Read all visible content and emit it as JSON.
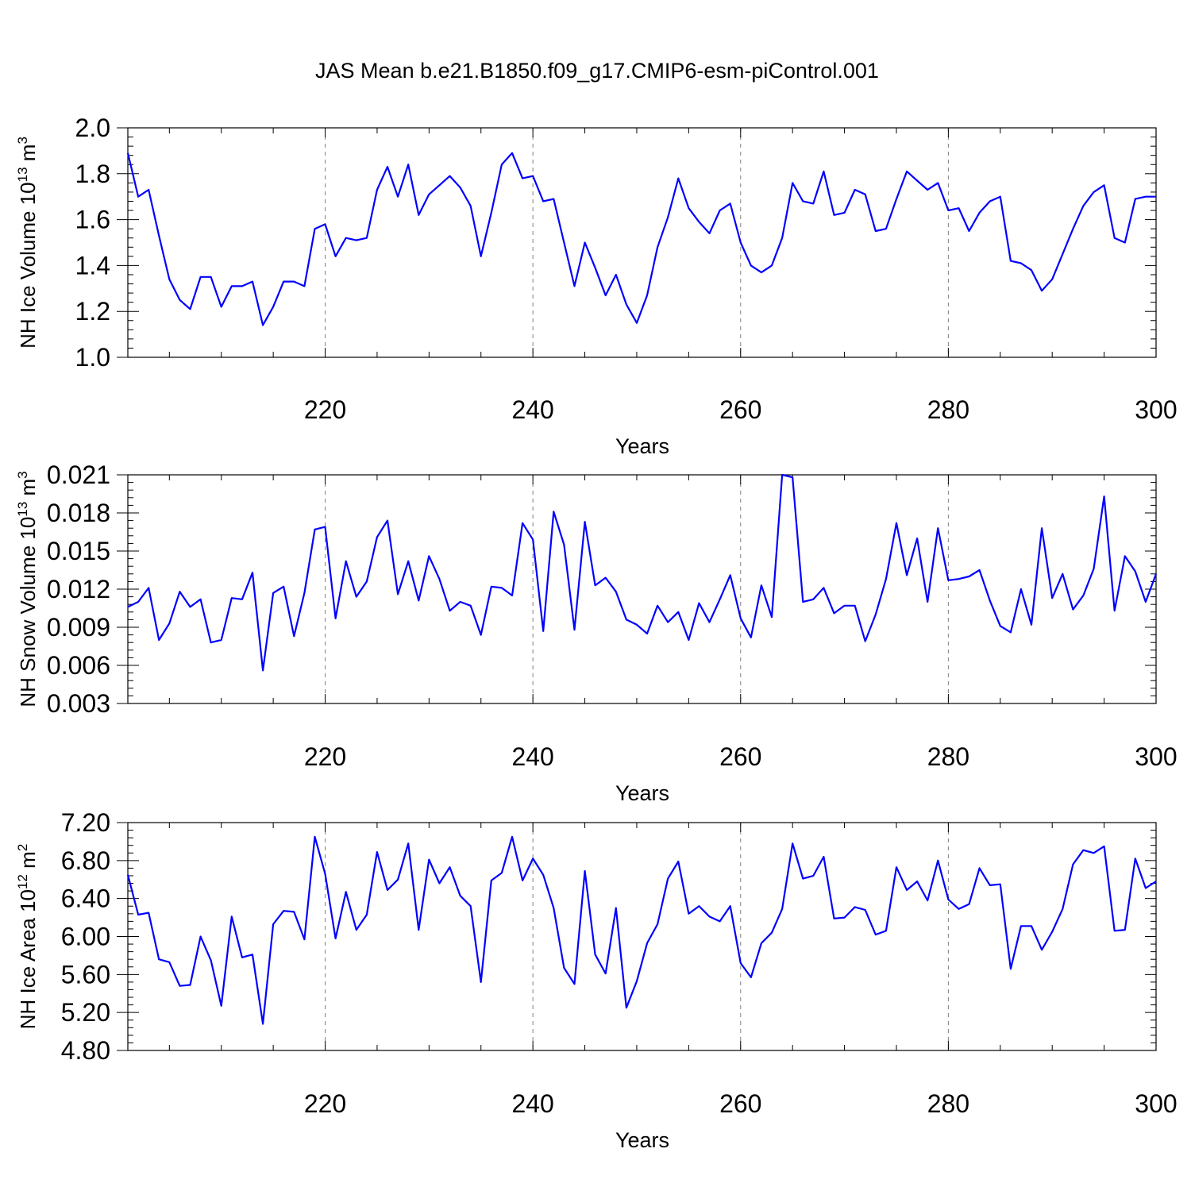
{
  "title": "JAS Mean b.e21.B1850.f09_g17.CMIP6-esm-piControl.001",
  "colors": {
    "series": "#0000ff",
    "axes": "#000000",
    "grid": "#808080"
  },
  "chart_data": [
    {
      "type": "line",
      "xlabel": "Years",
      "ylabel": {
        "main": "NH Ice Volume 10",
        "exp": "13",
        "unit": " m",
        "unit_exp": "3"
      },
      "xlim": [
        201,
        300
      ],
      "ylim": [
        1.0,
        2.0
      ],
      "xticks": [
        220,
        240,
        260,
        280,
        300
      ],
      "xtick_labels": [
        "220",
        "240",
        "260",
        "280",
        "300"
      ],
      "yticks": [
        1.0,
        1.2,
        1.4,
        1.6,
        1.8,
        2.0
      ],
      "ytick_labels": [
        "1.0",
        "1.2",
        "1.4",
        "1.6",
        "1.8",
        "2.0"
      ],
      "grid": "vertical dashed at major x ticks",
      "x_start": 201,
      "values": [
        1.89,
        1.7,
        1.73,
        1.53,
        1.34,
        1.25,
        1.21,
        1.35,
        1.35,
        1.22,
        1.31,
        1.31,
        1.33,
        1.14,
        1.22,
        1.33,
        1.33,
        1.31,
        1.56,
        1.58,
        1.44,
        1.52,
        1.51,
        1.52,
        1.73,
        1.83,
        1.7,
        1.84,
        1.62,
        1.71,
        1.75,
        1.79,
        1.74,
        1.66,
        1.44,
        1.63,
        1.84,
        1.89,
        1.78,
        1.79,
        1.68,
        1.69,
        1.5,
        1.31,
        1.5,
        1.39,
        1.27,
        1.36,
        1.23,
        1.15,
        1.27,
        1.48,
        1.61,
        1.78,
        1.65,
        1.59,
        1.54,
        1.64,
        1.67,
        1.5,
        1.4,
        1.37,
        1.4,
        1.52,
        1.76,
        1.68,
        1.67,
        1.81,
        1.62,
        1.63,
        1.73,
        1.71,
        1.55,
        1.56,
        1.69,
        1.81,
        1.77,
        1.73,
        1.76,
        1.64,
        1.65,
        1.55,
        1.63,
        1.68,
        1.7,
        1.42,
        1.41,
        1.38,
        1.29,
        1.34,
        1.45,
        1.56,
        1.66,
        1.72,
        1.75,
        1.52,
        1.5,
        1.69,
        1.7,
        1.7
      ]
    },
    {
      "type": "line",
      "xlabel": "Years",
      "ylabel": {
        "main": "NH Snow Volume 10",
        "exp": "13",
        "unit": " m",
        "unit_exp": "3"
      },
      "xlim": [
        201,
        300
      ],
      "ylim": [
        0.003,
        0.021
      ],
      "xticks": [
        220,
        240,
        260,
        280,
        300
      ],
      "xtick_labels": [
        "220",
        "240",
        "260",
        "280",
        "300"
      ],
      "yticks": [
        0.003,
        0.006,
        0.009,
        0.012,
        0.015,
        0.018,
        0.021
      ],
      "ytick_labels": [
        "0.003",
        "0.006",
        "0.009",
        "0.012",
        "0.015",
        "0.018",
        "0.021"
      ],
      "grid": "vertical dashed at major x ticks",
      "x_start": 201,
      "values": [
        0.0106,
        0.011,
        0.0121,
        0.008,
        0.0093,
        0.0118,
        0.0106,
        0.0112,
        0.0078,
        0.008,
        0.0113,
        0.0112,
        0.0133,
        0.0056,
        0.0117,
        0.0122,
        0.0083,
        0.0117,
        0.0167,
        0.0169,
        0.0097,
        0.0142,
        0.0114,
        0.0126,
        0.0161,
        0.0174,
        0.0116,
        0.0142,
        0.0111,
        0.0146,
        0.0128,
        0.0103,
        0.011,
        0.0107,
        0.0084,
        0.0122,
        0.0121,
        0.0115,
        0.0172,
        0.0159,
        0.0087,
        0.0181,
        0.0155,
        0.0088,
        0.0173,
        0.0123,
        0.0129,
        0.0118,
        0.0096,
        0.0092,
        0.0085,
        0.0107,
        0.0094,
        0.0102,
        0.008,
        0.0109,
        0.0094,
        0.0112,
        0.0131,
        0.0097,
        0.0082,
        0.0123,
        0.0098,
        0.021,
        0.0208,
        0.011,
        0.0112,
        0.0121,
        0.0101,
        0.0107,
        0.0107,
        0.0079,
        0.01,
        0.0128,
        0.0172,
        0.0131,
        0.016,
        0.011,
        0.0168,
        0.0127,
        0.0128,
        0.013,
        0.0135,
        0.0111,
        0.0091,
        0.0086,
        0.012,
        0.0092,
        0.0168,
        0.0113,
        0.0132,
        0.0104,
        0.0115,
        0.0136,
        0.0193,
        0.0103,
        0.0146,
        0.0134,
        0.011,
        0.0132
      ]
    },
    {
      "type": "line",
      "xlabel": "Years",
      "ylabel": {
        "main": "NH Ice Area 10",
        "exp": "12",
        "unit": " m",
        "unit_exp": "2"
      },
      "xlim": [
        201,
        300
      ],
      "ylim": [
        4.8,
        7.2
      ],
      "xticks": [
        220,
        240,
        260,
        280,
        300
      ],
      "xtick_labels": [
        "220",
        "240",
        "260",
        "280",
        "300"
      ],
      "yticks": [
        4.8,
        5.2,
        5.6,
        6.0,
        6.4,
        6.8,
        7.2
      ],
      "ytick_labels": [
        "4.80",
        "5.20",
        "5.60",
        "6.00",
        "6.40",
        "6.80",
        "7.20"
      ],
      "grid": "vertical dashed at major x ticks",
      "x_start": 201,
      "values": [
        6.65,
        6.23,
        6.25,
        5.76,
        5.73,
        5.48,
        5.49,
        6.0,
        5.75,
        5.27,
        6.21,
        5.78,
        5.81,
        5.08,
        6.13,
        6.27,
        6.26,
        5.97,
        7.05,
        6.66,
        5.98,
        6.47,
        6.07,
        6.23,
        6.89,
        6.49,
        6.6,
        6.98,
        6.07,
        6.81,
        6.56,
        6.73,
        6.43,
        6.32,
        5.52,
        6.59,
        6.67,
        7.05,
        6.59,
        6.82,
        6.65,
        6.3,
        5.67,
        5.5,
        6.69,
        5.81,
        5.61,
        6.3,
        5.25,
        5.53,
        5.93,
        6.13,
        6.61,
        6.79,
        6.24,
        6.32,
        6.21,
        6.16,
        6.32,
        5.72,
        5.57,
        5.93,
        6.04,
        6.29,
        6.98,
        6.61,
        6.64,
        6.84,
        6.19,
        6.2,
        6.31,
        6.28,
        6.02,
        6.06,
        6.73,
        6.49,
        6.58,
        6.38,
        6.8,
        6.39,
        6.29,
        6.34,
        6.72,
        6.54,
        6.55,
        5.66,
        6.11,
        6.11,
        5.86,
        6.05,
        6.29,
        6.76,
        6.91,
        6.88,
        6.95,
        6.06,
        6.07,
        6.82,
        6.51,
        6.58
      ]
    }
  ]
}
